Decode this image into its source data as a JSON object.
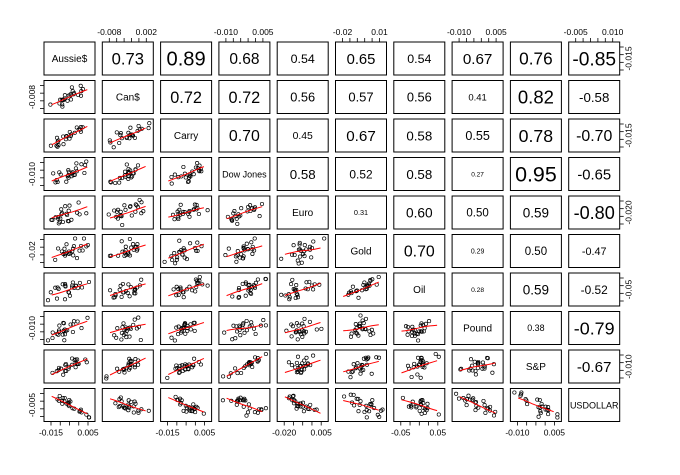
{
  "chart_data": {
    "type": "scatter-matrix",
    "title": "",
    "variables": [
      "Aussie$",
      "Can$",
      "Carry",
      "Dow Jones",
      "Euro",
      "Gold",
      "Oil",
      "Pound",
      "S&P",
      "USDOLLAR"
    ],
    "correlations": [
      [
        null,
        0.73,
        0.89,
        0.68,
        0.54,
        0.65,
        0.54,
        0.67,
        0.76,
        -0.85
      ],
      [
        0.73,
        null,
        0.72,
        0.72,
        0.56,
        0.57,
        0.56,
        0.41,
        0.82,
        -0.58
      ],
      [
        0.89,
        0.72,
        null,
        0.7,
        0.45,
        0.67,
        0.58,
        0.55,
        0.78,
        -0.7
      ],
      [
        0.68,
        0.72,
        0.7,
        null,
        0.58,
        0.52,
        0.58,
        0.27,
        0.95,
        -0.65
      ],
      [
        0.54,
        0.56,
        0.45,
        0.58,
        null,
        0.31,
        0.6,
        0.5,
        0.59,
        -0.8
      ],
      [
        0.65,
        0.57,
        0.67,
        0.52,
        0.31,
        null,
        0.7,
        0.29,
        0.5,
        -0.47
      ],
      [
        0.54,
        0.56,
        0.58,
        0.58,
        0.6,
        0.7,
        null,
        0.28,
        0.59,
        -0.52
      ],
      [
        0.67,
        0.41,
        0.55,
        0.27,
        0.5,
        0.29,
        0.28,
        null,
        0.38,
        -0.79
      ],
      [
        0.76,
        0.82,
        0.78,
        0.95,
        0.59,
        0.5,
        0.59,
        0.38,
        null,
        -0.67
      ],
      [
        -0.85,
        -0.58,
        -0.7,
        -0.65,
        -0.8,
        -0.47,
        -0.52,
        -0.79,
        -0.67,
        null
      ]
    ],
    "axes": {
      "bottom": [
        {
          "column": 0,
          "ticks": [
            "-0.015",
            "0.005"
          ]
        },
        {
          "column": 2,
          "ticks": [
            "-0.015",
            "0.005"
          ]
        },
        {
          "column": 4,
          "ticks": [
            "-0.020",
            "0.005"
          ]
        },
        {
          "column": 6,
          "ticks": [
            "-0.05",
            "0.05"
          ]
        },
        {
          "column": 8,
          "ticks": [
            "-0.010",
            "0.005"
          ]
        }
      ],
      "top": [
        {
          "column": 1,
          "ticks": [
            "-0.008",
            "0.002"
          ]
        },
        {
          "column": 3,
          "ticks": [
            "-0.010",
            "0.005"
          ]
        },
        {
          "column": 5,
          "ticks": [
            "-0.02",
            "0.01"
          ]
        },
        {
          "column": 7,
          "ticks": [
            "-0.010",
            "0.005"
          ]
        },
        {
          "column": 9,
          "ticks": [
            "-0.005",
            "0.010"
          ]
        }
      ],
      "left": [
        {
          "row": 1,
          "ticks": [
            "-0.008"
          ]
        },
        {
          "row": 3,
          "ticks": [
            "-0.010"
          ]
        },
        {
          "row": 5,
          "ticks": [
            "-0.02"
          ]
        },
        {
          "row": 7,
          "ticks": [
            "-0.010"
          ]
        },
        {
          "row": 9,
          "ticks": [
            "-0.005"
          ]
        }
      ],
      "right": [
        {
          "row": 0,
          "ticks": [
            "-0.015"
          ]
        },
        {
          "row": 2,
          "ticks": [
            "-0.015"
          ]
        },
        {
          "row": 4,
          "ticks": [
            "-0.020"
          ]
        },
        {
          "row": 6,
          "ticks": [
            "-0.05"
          ]
        },
        {
          "row": 8,
          "ticks": [
            "-0.010"
          ]
        }
      ]
    },
    "scatter_points_per_panel": 24,
    "colors": {
      "points": "#000000",
      "smooth_line": "#ff0000",
      "panel_border": "#000000",
      "text": "#000000"
    }
  }
}
